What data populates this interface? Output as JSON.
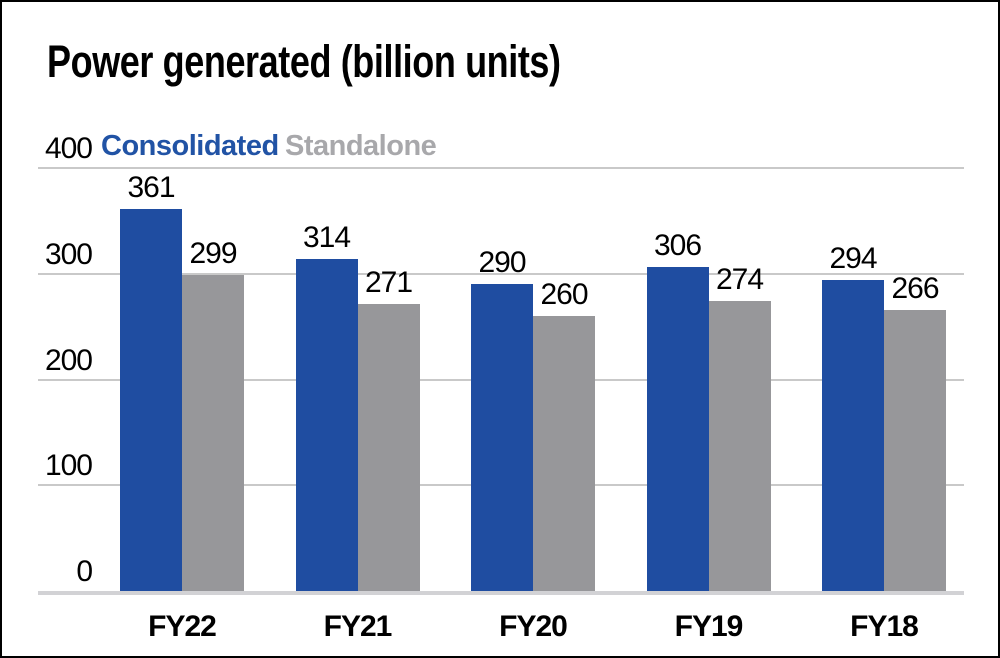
{
  "title": "Power generated (billion units)",
  "colors": {
    "background": "#FFFFFF",
    "border": "#000000",
    "text": "#000000",
    "gridline": "#C9C9C9",
    "baseline": "#D2D2D5",
    "legend_consolidated": "#2153A5",
    "legend_standalone": "#A8A8AB"
  },
  "chart_data": {
    "type": "bar",
    "title": "Power generated (billion units)",
    "categories": [
      "FY22",
      "FY21",
      "FY20",
      "FY19",
      "FY18"
    ],
    "series": [
      {
        "name": "Consolidated",
        "color": "#1F4DA1",
        "values": [
          361,
          314,
          290,
          306,
          294
        ]
      },
      {
        "name": "Standalone",
        "color": "#97979A",
        "values": [
          299,
          271,
          260,
          274,
          266
        ]
      }
    ],
    "xlabel": "",
    "ylabel": "",
    "ylim": [
      0,
      400
    ],
    "yticks": [
      400,
      300,
      200,
      100,
      0
    ],
    "grid": true,
    "bar_labels": true,
    "legend_position": "top-left"
  }
}
